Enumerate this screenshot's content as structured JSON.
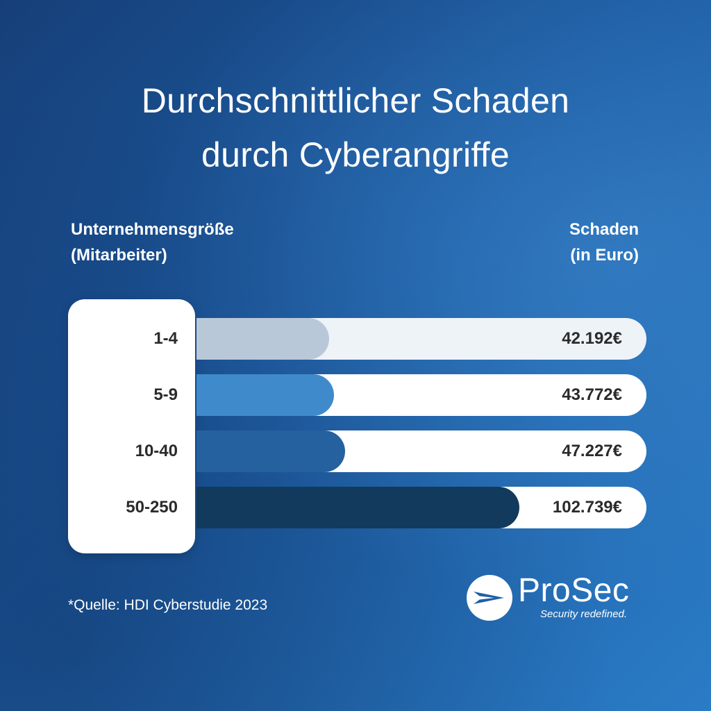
{
  "title": {
    "line1": "Durchschnittlicher Schaden",
    "line2": "durch Cyberangriffe"
  },
  "left_header": {
    "line1": "Unternehmensgröße",
    "line2": "(Mitarbeiter)"
  },
  "right_header": {
    "line1": "Schaden",
    "line2": "(in Euro)"
  },
  "chart_data": {
    "type": "bar",
    "orientation": "horizontal",
    "title": "Durchschnittlicher Schaden durch Cyberangriffe",
    "xlabel": "Schaden (in Euro)",
    "ylabel": "Unternehmensgröße (Mitarbeiter)",
    "categories": [
      "1-4",
      "5-9",
      "10-40",
      "50-250"
    ],
    "values": [
      42192,
      43772,
      47227,
      102739
    ],
    "value_labels": [
      "42.192€",
      "43.772€",
      "47.227€",
      "102.739€"
    ],
    "bar_colors": [
      "#b9c8d8",
      "#3f8acb",
      "#25609f",
      "#123a5c"
    ],
    "grid": false,
    "legend": "none"
  },
  "source": "*Quelle: HDI Cyberstudie 2023",
  "logo": {
    "name": "ProSec",
    "tagline": "Security redefined."
  },
  "colors": {
    "background_dark": "#163f78",
    "background_light": "#2a7cc6",
    "text_dark": "#2a2a2a"
  }
}
